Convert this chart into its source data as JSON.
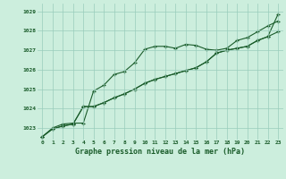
{
  "title": "Graphe pression niveau de la mer (hPa)",
  "background_color": "#cceedd",
  "plot_bg_color": "#cceedd",
  "grid_color": "#99ccbb",
  "line_color": "#1a5c2a",
  "xlim": [
    -0.5,
    23.5
  ],
  "ylim": [
    1022.4,
    1029.4
  ],
  "yticks": [
    1023,
    1024,
    1025,
    1026,
    1027,
    1028,
    1029
  ],
  "xticks": [
    0,
    1,
    2,
    3,
    4,
    5,
    6,
    7,
    8,
    9,
    10,
    11,
    12,
    13,
    14,
    15,
    16,
    17,
    18,
    19,
    20,
    21,
    22,
    23
  ],
  "series1": [
    1022.55,
    1023.0,
    1023.2,
    1023.25,
    1023.25,
    1024.9,
    1025.2,
    1025.75,
    1025.9,
    1026.35,
    1027.05,
    1027.2,
    1027.2,
    1027.1,
    1027.3,
    1027.25,
    1027.05,
    1027.0,
    1027.1,
    1027.5,
    1027.65,
    1027.95,
    1028.25,
    1028.5
  ],
  "series2": [
    1022.55,
    1022.95,
    1023.1,
    1023.2,
    1024.1,
    1024.1,
    1024.3,
    1024.55,
    1024.75,
    1025.0,
    1025.3,
    1025.5,
    1025.65,
    1025.8,
    1025.95,
    1026.1,
    1026.4,
    1026.85,
    1027.0,
    1027.1,
    1027.2,
    1027.5,
    1027.7,
    1027.95
  ],
  "series3": [
    1022.55,
    1022.95,
    1023.1,
    1023.2,
    1024.1,
    1024.1,
    1024.3,
    1024.55,
    1024.75,
    1025.0,
    1025.3,
    1025.5,
    1025.65,
    1025.8,
    1025.95,
    1026.1,
    1026.4,
    1026.85,
    1027.0,
    1027.1,
    1027.2,
    1027.5,
    1027.7,
    1028.85
  ]
}
